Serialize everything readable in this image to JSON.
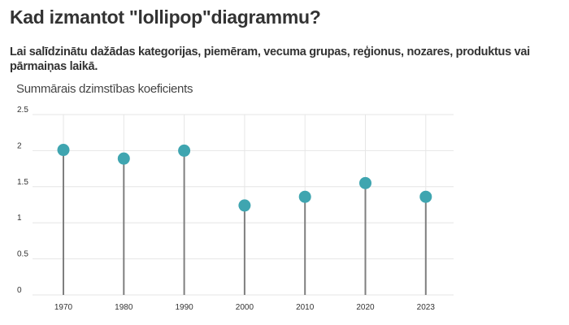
{
  "chart_data": {
    "type": "lollipop",
    "title": "Kad izmantot \"lollipop\"diagrammu?",
    "subtitle": "Lai salīdzinātu dažādas kategorijas, piemēram, vecuma grupas, reģionus, nozares, produktus vai pārmaiņas laikā.",
    "ylabel": "Summārais dzimstības koeficients",
    "xlabel": "",
    "categories": [
      "1970",
      "1980",
      "1990",
      "2000",
      "2010",
      "2020",
      "2023"
    ],
    "values": [
      2.01,
      1.89,
      2.0,
      1.24,
      1.36,
      1.55,
      1.36
    ],
    "ylim": [
      0,
      2.5
    ],
    "yticks": [
      "0",
      "0.5",
      "1",
      "1.5",
      "2",
      "2.5"
    ],
    "grid": true,
    "colors": {
      "marker": "#3fa5b0",
      "stem": "#7f7f7f",
      "grid": "#e6e6e6"
    }
  }
}
